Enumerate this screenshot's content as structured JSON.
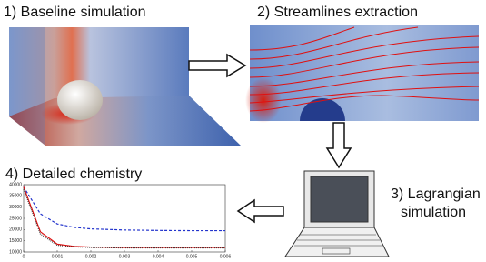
{
  "steps": {
    "baseline": "1) Baseline simulation",
    "streamlines": "2) Streamlines extraction",
    "lagrangian_1": "3) Lagrangian",
    "lagrangian_2": "simulation",
    "chemistry": "4) Detailed chemistry"
  },
  "chart_data": {
    "type": "line",
    "x": [
      0,
      0.0005,
      0.001,
      0.0015,
      0.002,
      0.003,
      0.004,
      0.005,
      0.006
    ],
    "series": [
      {
        "color": "#2233cc",
        "dash": true,
        "values": [
          39000,
          27000,
          22500,
          21000,
          20300,
          19800,
          19600,
          19500,
          19500
        ]
      },
      {
        "color": "#dd1111",
        "dash": false,
        "values": [
          39000,
          19000,
          13500,
          12500,
          12200,
          12000,
          12000,
          12000,
          12000
        ]
      },
      {
        "color": "#222222",
        "dotted": true,
        "values": [
          38000,
          18000,
          13000,
          12300,
          12000,
          11800,
          11800,
          11800,
          11800
        ]
      }
    ],
    "xlim": [
      0,
      0.006
    ],
    "xticks": [
      0,
      0.001,
      0.002,
      0.003,
      0.004,
      0.005,
      0.006
    ],
    "ylim": [
      10000,
      40000
    ],
    "yticks": [
      10000,
      15000,
      20000,
      25000,
      30000,
      35000,
      40000
    ]
  }
}
